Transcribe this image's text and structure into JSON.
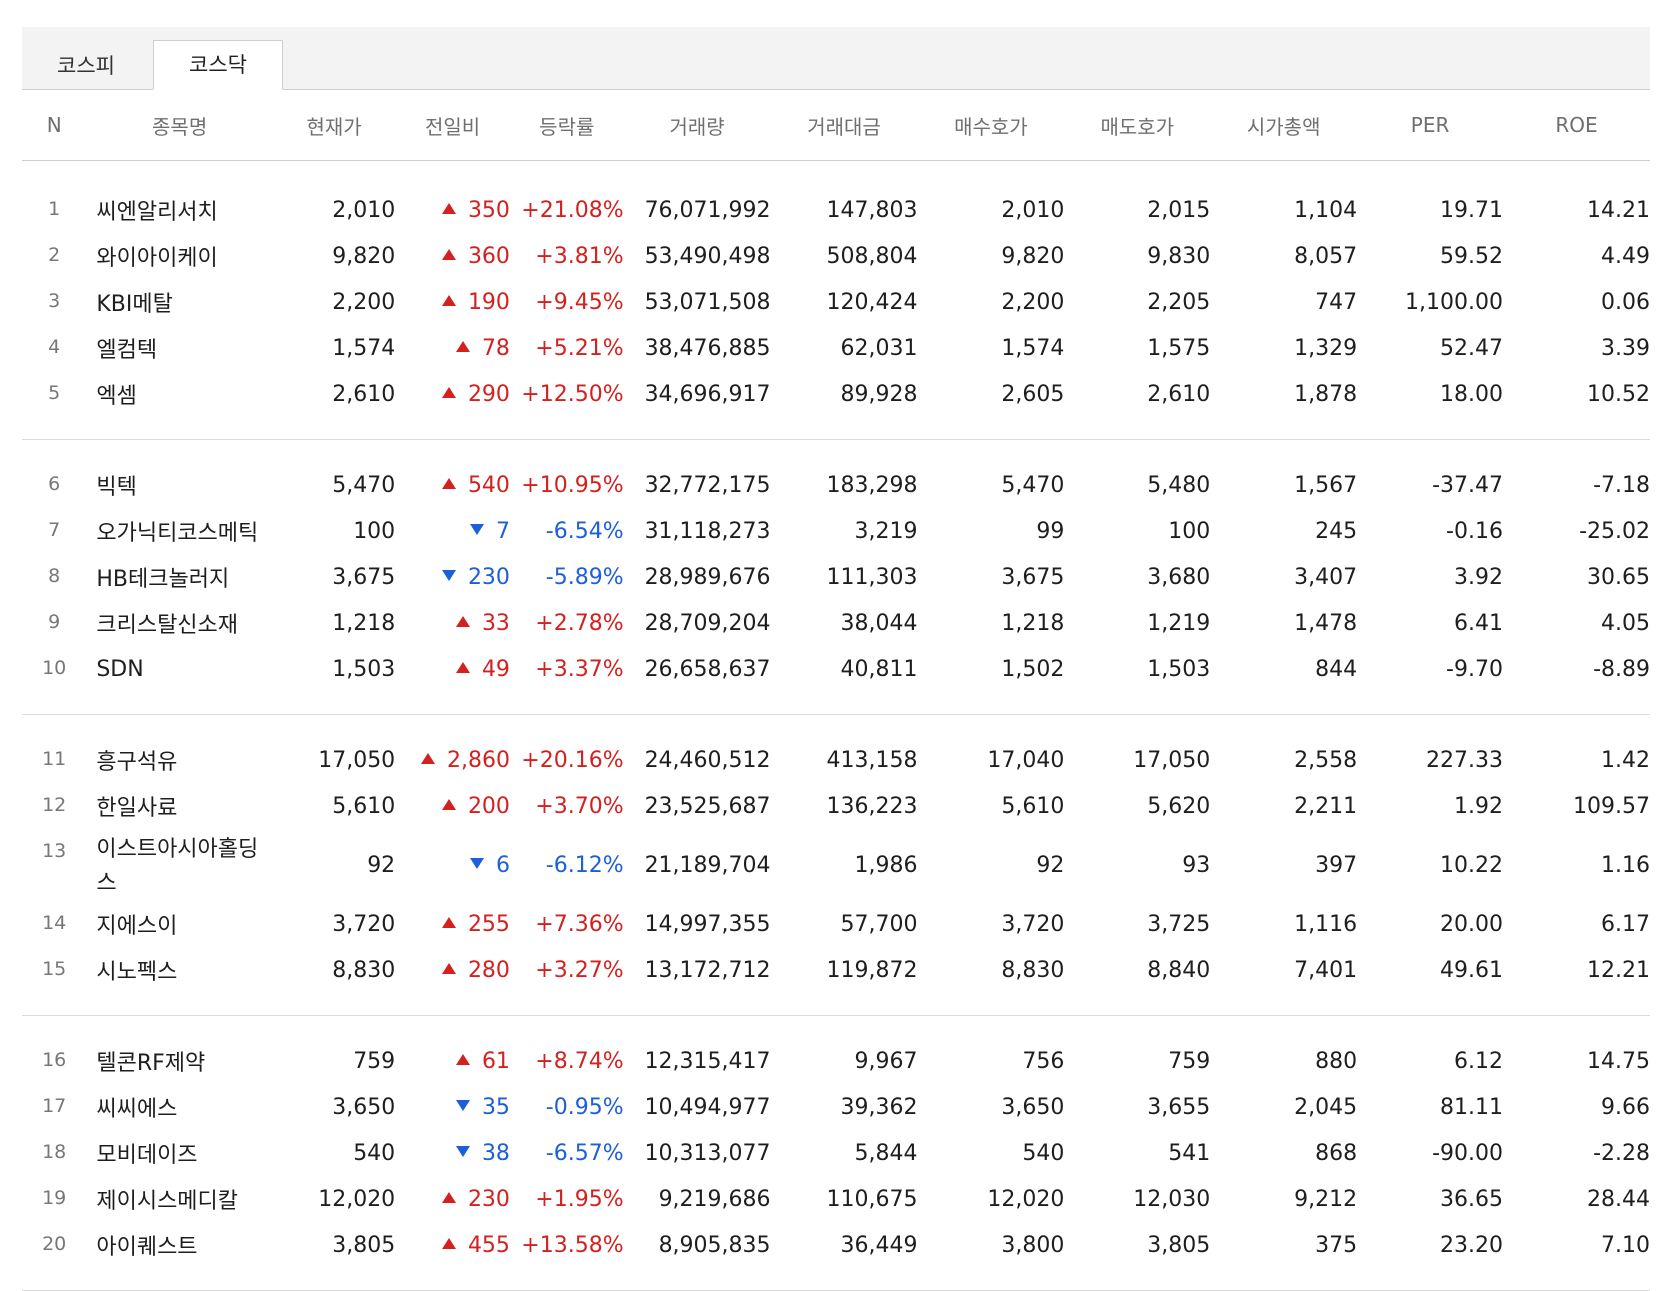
{
  "tabs": [
    {
      "label": "코스피",
      "active": false
    },
    {
      "label": "코스닥",
      "active": true
    }
  ],
  "columns": [
    "N",
    "종목명",
    "현재가",
    "전일비",
    "등락률",
    "거래량",
    "거래대금",
    "매수호가",
    "매도호가",
    "시가총액",
    "PER",
    "ROE"
  ],
  "colors": {
    "up": "#d3211f",
    "down": "#1d5fd8"
  },
  "rows": [
    {
      "n": "1",
      "name": "씨엔알리서치",
      "price": "2,010",
      "dir": "up",
      "change": "350",
      "rate": "+21.08%",
      "volume": "76,071,992",
      "amount": "147,803",
      "bid": "2,010",
      "ask": "2,015",
      "cap": "1,104",
      "per": "19.71",
      "roe": "14.21"
    },
    {
      "n": "2",
      "name": "와이아이케이",
      "price": "9,820",
      "dir": "up",
      "change": "360",
      "rate": "+3.81%",
      "volume": "53,490,498",
      "amount": "508,804",
      "bid": "9,820",
      "ask": "9,830",
      "cap": "8,057",
      "per": "59.52",
      "roe": "4.49"
    },
    {
      "n": "3",
      "name": "KBI메탈",
      "price": "2,200",
      "dir": "up",
      "change": "190",
      "rate": "+9.45%",
      "volume": "53,071,508",
      "amount": "120,424",
      "bid": "2,200",
      "ask": "2,205",
      "cap": "747",
      "per": "1,100.00",
      "roe": "0.06"
    },
    {
      "n": "4",
      "name": "엘컴텍",
      "price": "1,574",
      "dir": "up",
      "change": "78",
      "rate": "+5.21%",
      "volume": "38,476,885",
      "amount": "62,031",
      "bid": "1,574",
      "ask": "1,575",
      "cap": "1,329",
      "per": "52.47",
      "roe": "3.39"
    },
    {
      "n": "5",
      "name": "엑셈",
      "price": "2,610",
      "dir": "up",
      "change": "290",
      "rate": "+12.50%",
      "volume": "34,696,917",
      "amount": "89,928",
      "bid": "2,605",
      "ask": "2,610",
      "cap": "1,878",
      "per": "18.00",
      "roe": "10.52"
    },
    {
      "n": "6",
      "name": "빅텍",
      "price": "5,470",
      "dir": "up",
      "change": "540",
      "rate": "+10.95%",
      "volume": "32,772,175",
      "amount": "183,298",
      "bid": "5,470",
      "ask": "5,480",
      "cap": "1,567",
      "per": "-37.47",
      "roe": "-7.18"
    },
    {
      "n": "7",
      "name": "오가닉티코스메틱",
      "price": "100",
      "dir": "down",
      "change": "7",
      "rate": "-6.54%",
      "volume": "31,118,273",
      "amount": "3,219",
      "bid": "99",
      "ask": "100",
      "cap": "245",
      "per": "-0.16",
      "roe": "-25.02"
    },
    {
      "n": "8",
      "name": "HB테크놀러지",
      "price": "3,675",
      "dir": "down",
      "change": "230",
      "rate": "-5.89%",
      "volume": "28,989,676",
      "amount": "111,303",
      "bid": "3,675",
      "ask": "3,680",
      "cap": "3,407",
      "per": "3.92",
      "roe": "30.65"
    },
    {
      "n": "9",
      "name": "크리스탈신소재",
      "price": "1,218",
      "dir": "up",
      "change": "33",
      "rate": "+2.78%",
      "volume": "28,709,204",
      "amount": "38,044",
      "bid": "1,218",
      "ask": "1,219",
      "cap": "1,478",
      "per": "6.41",
      "roe": "4.05"
    },
    {
      "n": "10",
      "name": "SDN",
      "price": "1,503",
      "dir": "up",
      "change": "49",
      "rate": "+3.37%",
      "volume": "26,658,637",
      "amount": "40,811",
      "bid": "1,502",
      "ask": "1,503",
      "cap": "844",
      "per": "-9.70",
      "roe": "-8.89"
    },
    {
      "n": "11",
      "name": "흥구석유",
      "price": "17,050",
      "dir": "up",
      "change": "2,860",
      "rate": "+20.16%",
      "volume": "24,460,512",
      "amount": "413,158",
      "bid": "17,040",
      "ask": "17,050",
      "cap": "2,558",
      "per": "227.33",
      "roe": "1.42"
    },
    {
      "n": "12",
      "name": "한일사료",
      "price": "5,610",
      "dir": "up",
      "change": "200",
      "rate": "+3.70%",
      "volume": "23,525,687",
      "amount": "136,223",
      "bid": "5,610",
      "ask": "5,620",
      "cap": "2,211",
      "per": "1.92",
      "roe": "109.57"
    },
    {
      "n": "13",
      "name": "이스트아시아홀딩스",
      "price": "92",
      "dir": "down",
      "change": "6",
      "rate": "-6.12%",
      "volume": "21,189,704",
      "amount": "1,986",
      "bid": "92",
      "ask": "93",
      "cap": "397",
      "per": "10.22",
      "roe": "1.16"
    },
    {
      "n": "14",
      "name": "지에스이",
      "price": "3,720",
      "dir": "up",
      "change": "255",
      "rate": "+7.36%",
      "volume": "14,997,355",
      "amount": "57,700",
      "bid": "3,720",
      "ask": "3,725",
      "cap": "1,116",
      "per": "20.00",
      "roe": "6.17"
    },
    {
      "n": "15",
      "name": "시노펙스",
      "price": "8,830",
      "dir": "up",
      "change": "280",
      "rate": "+3.27%",
      "volume": "13,172,712",
      "amount": "119,872",
      "bid": "8,830",
      "ask": "8,840",
      "cap": "7,401",
      "per": "49.61",
      "roe": "12.21"
    },
    {
      "n": "16",
      "name": "텔콘RF제약",
      "price": "759",
      "dir": "up",
      "change": "61",
      "rate": "+8.74%",
      "volume": "12,315,417",
      "amount": "9,967",
      "bid": "756",
      "ask": "759",
      "cap": "880",
      "per": "6.12",
      "roe": "14.75"
    },
    {
      "n": "17",
      "name": "씨씨에스",
      "price": "3,650",
      "dir": "down",
      "change": "35",
      "rate": "-0.95%",
      "volume": "10,494,977",
      "amount": "39,362",
      "bid": "3,650",
      "ask": "3,655",
      "cap": "2,045",
      "per": "81.11",
      "roe": "9.66"
    },
    {
      "n": "18",
      "name": "모비데이즈",
      "price": "540",
      "dir": "down",
      "change": "38",
      "rate": "-6.57%",
      "volume": "10,313,077",
      "amount": "5,844",
      "bid": "540",
      "ask": "541",
      "cap": "868",
      "per": "-90.00",
      "roe": "-2.28"
    },
    {
      "n": "19",
      "name": "제이시스메디칼",
      "price": "12,020",
      "dir": "up",
      "change": "230",
      "rate": "+1.95%",
      "volume": "9,219,686",
      "amount": "110,675",
      "bid": "12,020",
      "ask": "12,030",
      "cap": "9,212",
      "per": "36.65",
      "roe": "28.44"
    },
    {
      "n": "20",
      "name": "아이퀘스트",
      "price": "3,805",
      "dir": "up",
      "change": "455",
      "rate": "+13.58%",
      "volume": "8,905,835",
      "amount": "36,449",
      "bid": "3,800",
      "ask": "3,805",
      "cap": "375",
      "per": "23.20",
      "roe": "7.10"
    }
  ]
}
